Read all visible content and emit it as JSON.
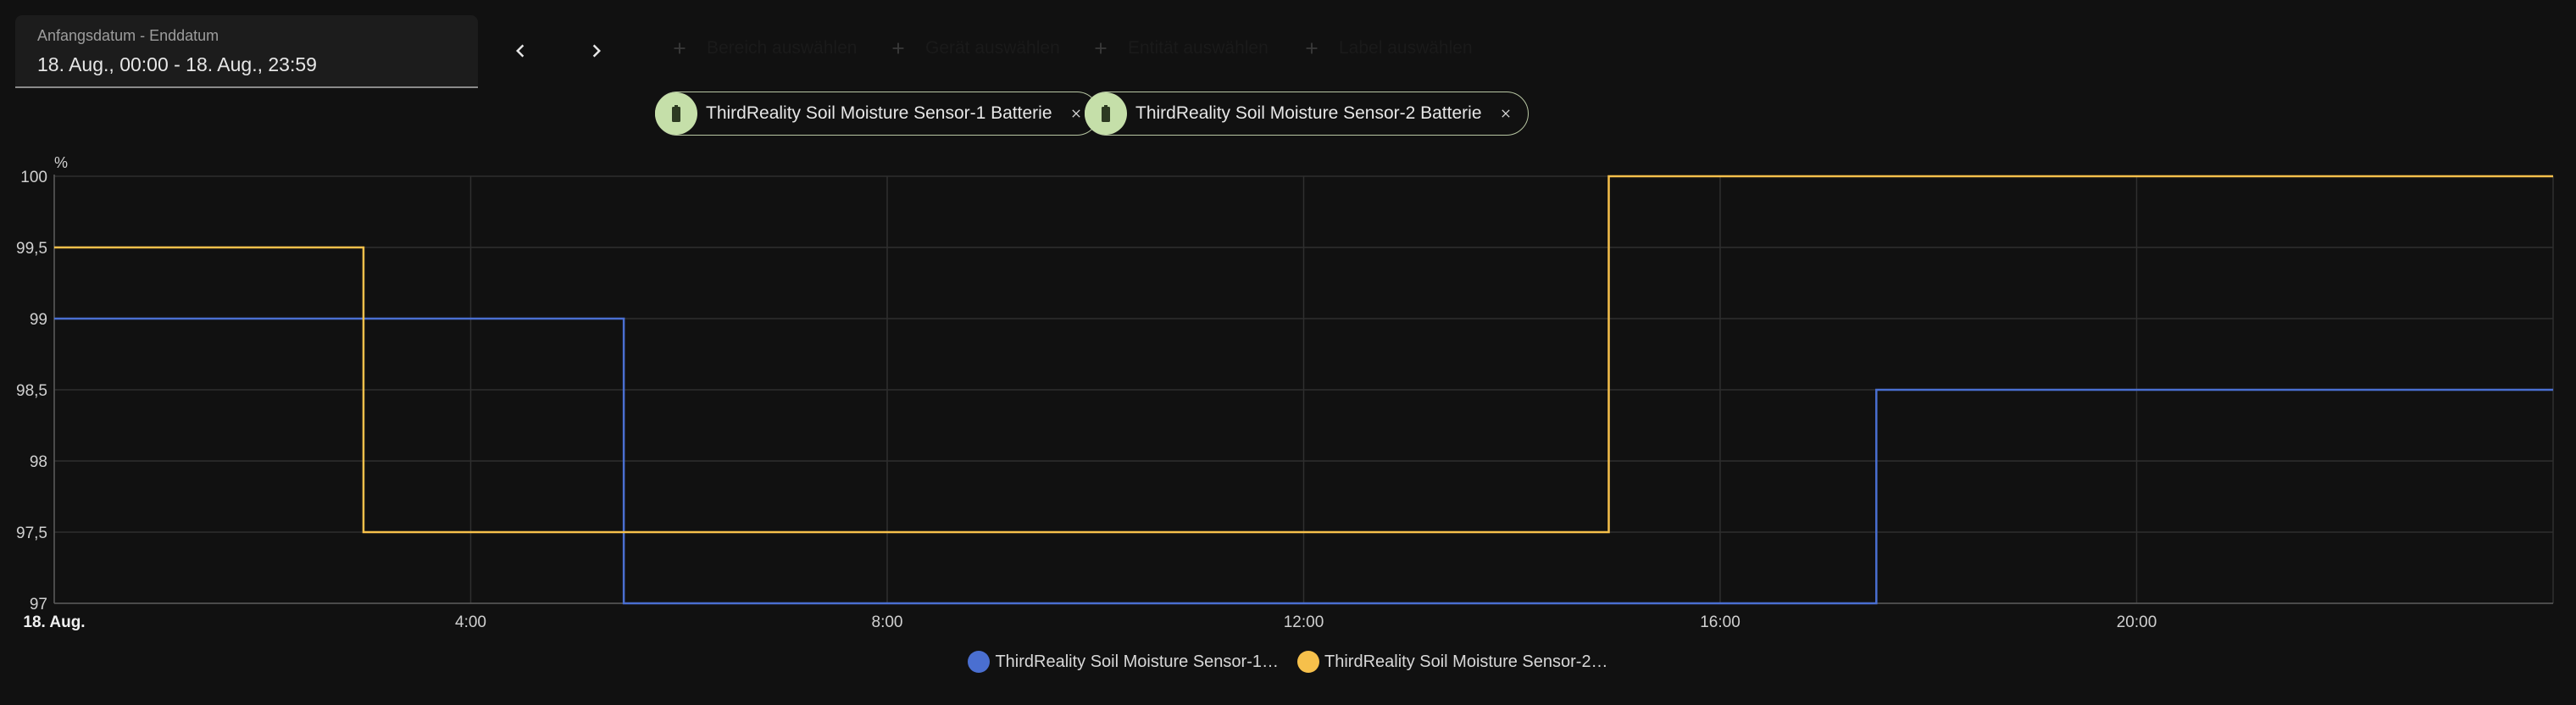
{
  "date_range": {
    "label": "Anfangsdatum - Enddatum",
    "value": "18. Aug., 00:00 - 18. Aug., 23:59"
  },
  "nav": {
    "prev_icon": "chevron-left-icon",
    "next_icon": "chevron-right-icon"
  },
  "filters": [
    {
      "label": "Bereich auswählen",
      "color": "#f7b98a"
    },
    {
      "label": "Gerät auswählen",
      "color": "#9ad7f5"
    },
    {
      "label": "Entität auswählen",
      "color": "#c5e3a8"
    },
    {
      "label": "Label auswählen",
      "color": "#d6d6d6"
    }
  ],
  "entities": [
    {
      "label": "ThirdReality Soil Moisture Sensor-1 Batterie",
      "icon": "battery-icon"
    },
    {
      "label": "ThirdReality Soil Moisture Sensor-2 Batterie",
      "icon": "battery-icon"
    }
  ],
  "chart_data": {
    "type": "line",
    "step": true,
    "unit_label": "%",
    "xlim": [
      0,
      24
    ],
    "ylim": [
      97,
      100
    ],
    "y_ticks": [
      "97",
      "97,5",
      "98",
      "98,5",
      "99",
      "99,5",
      "100"
    ],
    "x_ticks": [
      {
        "x": 0,
        "label": "18. Aug.",
        "bold": true
      },
      {
        "x": 4,
        "label": "4:00"
      },
      {
        "x": 8,
        "label": "8:00"
      },
      {
        "x": 12,
        "label": "12:00"
      },
      {
        "x": 16,
        "label": "16:00"
      },
      {
        "x": 20,
        "label": "20:00"
      }
    ],
    "grid": true,
    "legend_position": "bottom-center",
    "series": [
      {
        "name": "ThirdReality Soil Moisture Sensor-1…",
        "color": "#4a6fd1",
        "points": [
          [
            0,
            99
          ],
          [
            5.47,
            97
          ],
          [
            17.5,
            98.5
          ],
          [
            24,
            98.5
          ]
        ]
      },
      {
        "name": "ThirdReality Soil Moisture Sensor-2…",
        "color": "#f6c04b",
        "points": [
          [
            0,
            99.5
          ],
          [
            2.97,
            97.5
          ],
          [
            14.93,
            100
          ],
          [
            24,
            100
          ]
        ]
      }
    ]
  }
}
